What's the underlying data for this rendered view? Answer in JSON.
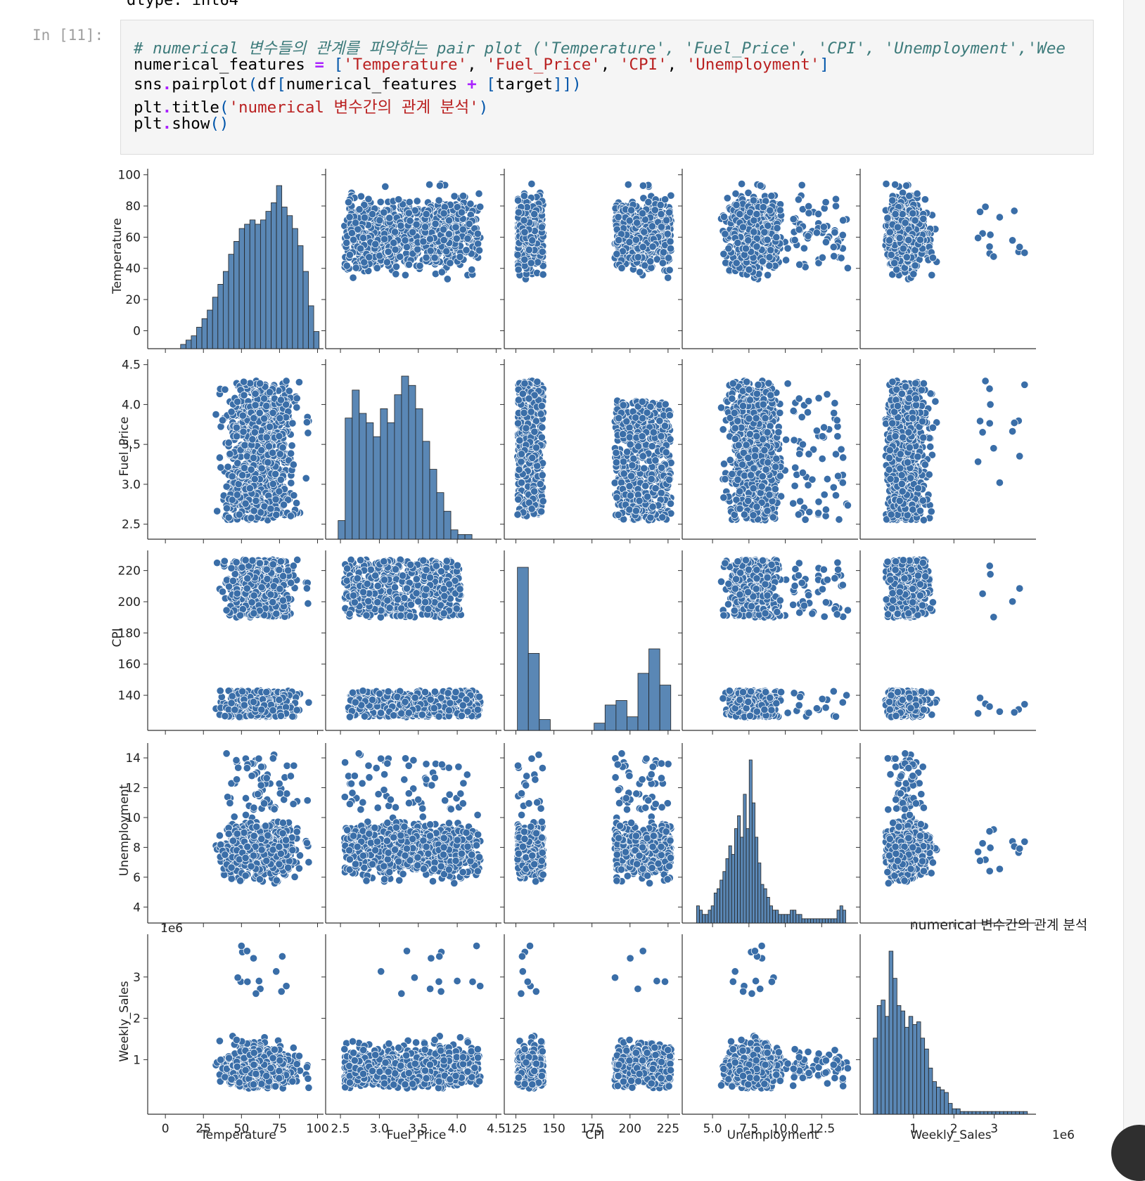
{
  "notebook": {
    "previous_output": "dtype: int64",
    "prompt": "In [11]:",
    "code_lines": [
      [
        [
          "# numerical 변수들의 관계를 파악하는 pair plot ('Temperature', 'Fuel_Price', 'CPI', 'Unemployment','Wee",
          "comment"
        ]
      ],
      [
        [
          "numerical_features",
          "var"
        ],
        [
          " = ",
          "op"
        ],
        [
          "[",
          "paren"
        ],
        [
          "'Temperature'",
          "str"
        ],
        [
          ", ",
          "var"
        ],
        [
          "'Fuel_Price'",
          "str"
        ],
        [
          ", ",
          "var"
        ],
        [
          "'CPI'",
          "str"
        ],
        [
          ", ",
          "var"
        ],
        [
          "'Unemployment'",
          "str"
        ],
        [
          "]",
          "paren"
        ]
      ],
      [
        [
          "sns",
          "var"
        ],
        [
          ".",
          "op"
        ],
        [
          "pairplot",
          "var"
        ],
        [
          "(",
          "paren"
        ],
        [
          "df",
          "var"
        ],
        [
          "[",
          "paren"
        ],
        [
          "numerical_features ",
          "var"
        ],
        [
          "+",
          "op"
        ],
        [
          " ",
          "var"
        ],
        [
          "[",
          "paren"
        ],
        [
          "target",
          "var"
        ],
        [
          "]]",
          "paren"
        ],
        [
          ")",
          "paren"
        ]
      ],
      [
        [
          "plt",
          "var"
        ],
        [
          ".",
          "op"
        ],
        [
          "title",
          "var"
        ],
        [
          "(",
          "paren"
        ],
        [
          "'numerical 변수간의 관계 분석'",
          "str"
        ],
        [
          ")",
          "paren"
        ]
      ],
      [
        [
          "plt",
          "var"
        ],
        [
          ".",
          "op"
        ],
        [
          "show",
          "var"
        ],
        [
          "()",
          "paren"
        ]
      ]
    ]
  },
  "colors": {
    "marker": "#3a6ea8",
    "marker_edge": "#ffffff",
    "hist_fill": "#5a87b5",
    "hist_edge": "#222222"
  },
  "chart_data": {
    "type": "scatter",
    "subtype": "pairplot",
    "title": "numerical 변수간의 관계 분석",
    "variables": [
      "Temperature",
      "Fuel_Price",
      "CPI",
      "Unemployment",
      "Weekly_Sales"
    ],
    "axes": {
      "Temperature": {
        "range": [
          -7,
          103
        ],
        "ticks": [
          0,
          25,
          50,
          75,
          100
        ],
        "yticks": [
          0,
          20,
          40,
          60,
          80,
          100
        ]
      },
      "Fuel_Price": {
        "range": [
          2.4,
          4.55
        ],
        "ticks": [
          2.5,
          3.0,
          3.5,
          4.0,
          4.5
        ],
        "tick_labels": [
          "2.5",
          "3.0",
          "3.5",
          "4.0",
          "4.5"
        ],
        "yticks": [
          2.5,
          3.0,
          3.5,
          4.0,
          4.5
        ],
        "ytick_labels": [
          "2.5",
          "3.0",
          "3.5",
          "4.0",
          "4.5"
        ]
      },
      "CPI": {
        "range": [
          122,
          232
        ],
        "ticks": [
          125,
          150,
          175,
          200,
          225
        ],
        "yticks": [
          140,
          160,
          180,
          200,
          220
        ]
      },
      "Unemployment": {
        "range": [
          3.4,
          14.9
        ],
        "ticks": [
          5.0,
          7.5,
          10.0,
          12.5
        ],
        "tick_labels": [
          "5.0",
          "7.5",
          "10.0",
          "12.5"
        ],
        "yticks": [
          4,
          6,
          8,
          10,
          12,
          14
        ]
      },
      "Weekly_Sales": {
        "range": [
          -150000,
          4000000
        ],
        "ticks": [
          1000000,
          2000000,
          3000000
        ],
        "tick_labels": [
          "1",
          "2",
          "3"
        ],
        "yticks": [
          1000000,
          2000000,
          3000000
        ],
        "ytick_labels": [
          "1",
          "2",
          "3"
        ],
        "offset_label": "1e6"
      }
    },
    "histograms": {
      "Temperature": {
        "start": 10,
        "bin": 3.5,
        "counts": [
          1,
          2,
          3,
          5,
          7,
          9,
          12,
          15,
          18,
          22,
          25,
          28,
          29,
          30,
          29,
          30,
          32,
          34,
          38,
          33,
          31,
          28,
          24,
          18,
          10,
          4
        ]
      },
      "Fuel_Price": {
        "start": 2.47,
        "bin": 0.0905,
        "counts": [
          4,
          26,
          32,
          27,
          25,
          22,
          28,
          25,
          31,
          35,
          33,
          28,
          21,
          15,
          10,
          6,
          2,
          1,
          1,
          0
        ]
      },
      "CPI": {
        "start": 126,
        "bin": 7.2,
        "counts": [
          180,
          85,
          12,
          0,
          0,
          0,
          0,
          8,
          28,
          33,
          15,
          63,
          90,
          50
        ]
      },
      "Unemployment": {
        "start": 3.9,
        "bin": 0.201,
        "counts": [
          4,
          3,
          2,
          2,
          3,
          4,
          7,
          8,
          10,
          12,
          15,
          18,
          16,
          22,
          25,
          20,
          30,
          22,
          38,
          28,
          20,
          14,
          9,
          8,
          6,
          4,
          3,
          3,
          2,
          2,
          2,
          2,
          3,
          3,
          2,
          2,
          1,
          1,
          1,
          1,
          1,
          1,
          1,
          1,
          1,
          1,
          1,
          1,
          3,
          4,
          3
        ]
      },
      "Weekly_Sales": {
        "start": 0,
        "bin": 98000,
        "counts": [
          28,
          40,
          42,
          36,
          60,
          50,
          40,
          38,
          32,
          36,
          33,
          34,
          28,
          24,
          17,
          12,
          10,
          9,
          8,
          4,
          2,
          2,
          1,
          1,
          1,
          1,
          1,
          1,
          1,
          1,
          1,
          1,
          1,
          1,
          1,
          1,
          1,
          1,
          1
        ]
      }
    }
  }
}
